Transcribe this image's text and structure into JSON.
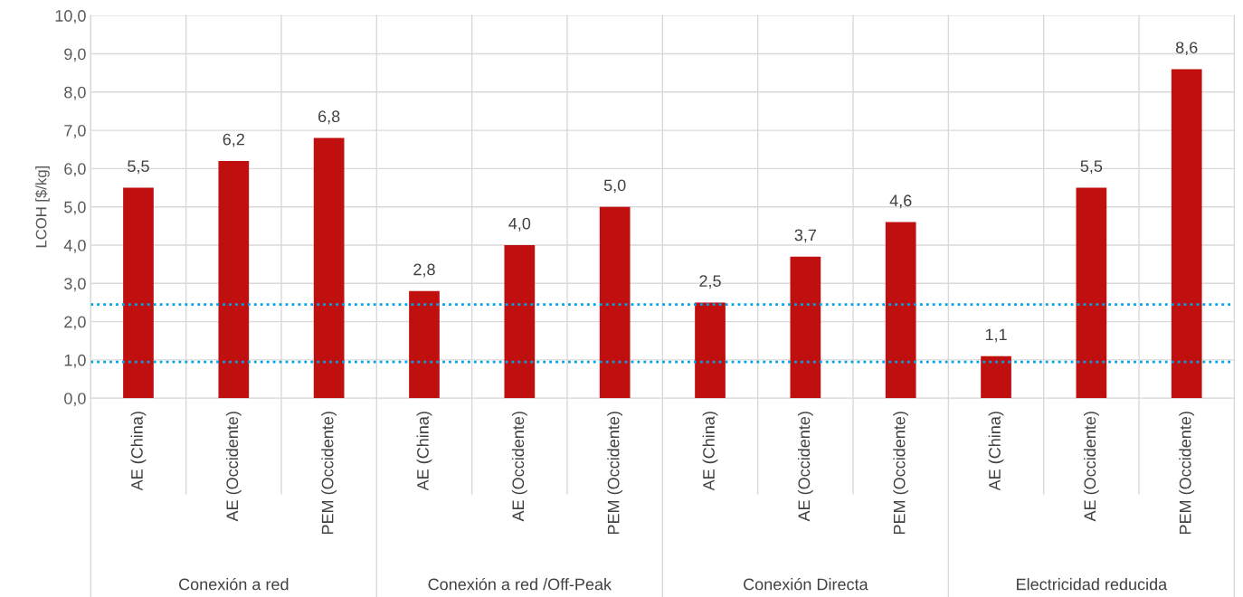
{
  "chart_data": {
    "type": "bar",
    "ylabel": "LCOH [$/kg]",
    "categories": [
      "AE (China)",
      "AE (Occidente)",
      "PEM (Occidente)",
      "AE (China)",
      "AE (Occidente)",
      "PEM (Occidente)",
      "AE (China)",
      "AE (Occidente)",
      "PEM (Occidente)",
      "AE (China)",
      "AE (Occidente)",
      "PEM (Occidente)"
    ],
    "values": [
      5.5,
      6.2,
      6.8,
      2.8,
      4.0,
      5.0,
      2.5,
      3.7,
      4.6,
      1.1,
      5.5,
      8.6
    ],
    "value_labels": [
      "5,5",
      "6,2",
      "6,8",
      "2,8",
      "4,0",
      "5,0",
      "2,5",
      "3,7",
      "4,6",
      "1,1",
      "5,5",
      "8,6"
    ],
    "color": "#c00f0f",
    "ylim": [
      0,
      10
    ],
    "yticks": [
      {
        "value": 0,
        "label": "0,0"
      },
      {
        "value": 1,
        "label": "1,0"
      },
      {
        "value": 2,
        "label": "2,0"
      },
      {
        "value": 3,
        "label": "3,0"
      },
      {
        "value": 4,
        "label": "4,0"
      },
      {
        "value": 5,
        "label": "5,0"
      },
      {
        "value": 6,
        "label": "6,0"
      },
      {
        "value": 7,
        "label": "7,0"
      },
      {
        "value": 8,
        "label": "8,0"
      },
      {
        "value": 9,
        "label": "9,0"
      },
      {
        "value": 10,
        "label": "10,0"
      }
    ],
    "grid": true,
    "ref_lines": [
      {
        "axis": "y",
        "value": 2.45,
        "color": "#00a2e8",
        "line_style": "dotted"
      },
      {
        "axis": "y",
        "value": 0.95,
        "color": "#00a2e8",
        "line_style": "dotted"
      }
    ],
    "annotations": [
      "Conexión a red",
      "Conexión a red /Off-Peak",
      "Conexión Directa",
      "Electricidad reducida"
    ]
  }
}
